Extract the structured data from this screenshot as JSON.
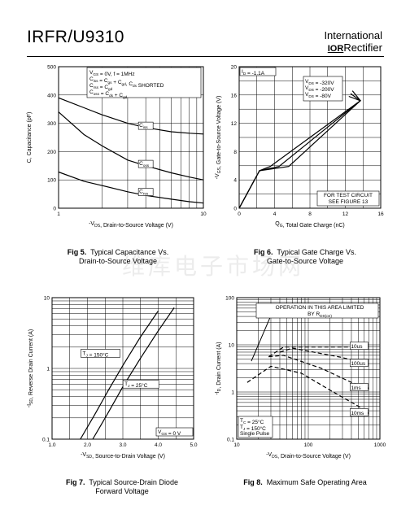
{
  "header": {
    "part_number": "IRFR/U9310",
    "brand_line1": "International",
    "brand_logo": "IOR",
    "brand_line2": "Rectifier"
  },
  "watermark": "维库电子市场网",
  "figures": {
    "fig5": {
      "number": "Fig 5.",
      "caption1": "Typical Capacitance Vs.",
      "caption2": "Drain-to-Source Voltage"
    },
    "fig6": {
      "number": "Fig 6.",
      "caption1": "Typical Gate Charge Vs.",
      "caption2": "Gate-to-Source Voltage"
    },
    "fig7": {
      "number": "Fig 7.",
      "caption1": "Typical Source-Drain Diode",
      "caption2": "Forward Voltage"
    },
    "fig8": {
      "number": "Fig 8.",
      "caption1": "Maximum Safe Operating Area",
      "caption2": ""
    }
  },
  "chart_data": [
    {
      "id": "fig5",
      "type": "line",
      "xlabel": "-V_DS, Drain-to-Source Voltage (V)",
      "ylabel": "C, Capacitance (pF)",
      "xscale": "log",
      "xlim": [
        1,
        10
      ],
      "ylim": [
        0,
        500
      ],
      "xticks": [
        "1",
        "10"
      ],
      "yticks": [
        "0",
        "100",
        "200",
        "300",
        "400",
        "500"
      ],
      "legend": [
        "V_GS = 0V, f = 1MHz",
        "C_iss = C_gs + C_gd, C_ds SHORTED",
        "C_rss = C_gd",
        "C_oss = C_ds + C_gd"
      ],
      "series": [
        {
          "name": "Ciss",
          "x": [
            1,
            1.5,
            2,
            3,
            4,
            6,
            8,
            10
          ],
          "y": [
            390,
            355,
            330,
            300,
            285,
            270,
            265,
            262
          ]
        },
        {
          "name": "Coss",
          "x": [
            1,
            1.5,
            2,
            3,
            4,
            6,
            8,
            10
          ],
          "y": [
            340,
            260,
            220,
            170,
            150,
            125,
            110,
            100
          ]
        },
        {
          "name": "Crss",
          "x": [
            1,
            1.5,
            2,
            3,
            4,
            6,
            8,
            10
          ],
          "y": [
            128,
            95,
            80,
            58,
            45,
            32,
            23,
            18
          ]
        }
      ]
    },
    {
      "id": "fig6",
      "type": "line",
      "xlabel": "Q_G, Total Gate Charge (nC)",
      "ylabel": "-V_GS, Gate-to-Source Voltage (V)",
      "xlim": [
        0,
        16
      ],
      "ylim": [
        0,
        20
      ],
      "xticks": [
        "0",
        "4",
        "8",
        "12",
        "16"
      ],
      "yticks": [
        "0",
        "4",
        "8",
        "12",
        "16",
        "20"
      ],
      "annotations": [
        "I_D = -1.1A",
        "FOR TEST CIRCUIT",
        "SEE FIGURE 13"
      ],
      "series": [
        {
          "name": "V_DS = -320V",
          "x": [
            0,
            2.3,
            3.5,
            13.7,
            12.8
          ],
          "y": [
            0,
            5.3,
            5.9,
            15.2,
            16.6
          ]
        },
        {
          "name": "V_DS = -200V",
          "x": [
            0,
            2.3,
            4.5,
            13.7,
            12.6
          ],
          "y": [
            0,
            5.3,
            5.9,
            15.2,
            16.2
          ]
        },
        {
          "name": "V_DS = -80V",
          "x": [
            0,
            2.3,
            5.6,
            13.7,
            12.4
          ],
          "y": [
            0,
            5.3,
            5.9,
            15.2,
            15.8
          ]
        }
      ]
    },
    {
      "id": "fig7",
      "type": "line",
      "xlabel": "-V_SD, Source-to-Drain Voltage (V)",
      "ylabel": "-I_SD, Reverse Drain Current (A)",
      "yscale": "log",
      "xlim": [
        1.0,
        5.0
      ],
      "ylim": [
        0.1,
        10
      ],
      "xticks": [
        "1.0",
        "2.0",
        "3.0",
        "4.0",
        "5.0"
      ],
      "yticks": [
        "0.1",
        "1",
        "10"
      ],
      "annotations": [
        "V_GS = 0 V"
      ],
      "series": [
        {
          "name": "T_J = 150°C",
          "x": [
            1.8,
            2.2,
            2.6,
            3.0,
            3.5,
            4.0
          ],
          "y": [
            0.1,
            0.22,
            0.5,
            1.1,
            2.8,
            6.5
          ]
        },
        {
          "name": "T_J = 25°C",
          "x": [
            2.15,
            2.55,
            3.0,
            3.5,
            4.0,
            4.45
          ],
          "y": [
            0.1,
            0.22,
            0.55,
            1.4,
            3.4,
            7.2
          ]
        }
      ]
    },
    {
      "id": "fig8",
      "type": "line",
      "xlabel": "-V_DS, Drain-to-Source Voltage (V)",
      "ylabel": "-I_D, Drain Current (A)",
      "xscale": "log",
      "yscale": "log",
      "xlim": [
        10,
        1000
      ],
      "ylim": [
        0.1,
        100
      ],
      "xticks": [
        "10",
        "100",
        "1000"
      ],
      "yticks": [
        "0.1",
        "1",
        "10",
        "100"
      ],
      "annotations": [
        "OPERATION IN THIS AREA LIMITED",
        "BY R_DS(on)",
        "T_C = 25°C",
        "T_J = 150°C",
        "Single Pulse"
      ],
      "series": [
        {
          "name": "10us",
          "x": [
            28,
            45,
            400,
            700
          ],
          "y": [
            5.6,
            9,
            9,
            9
          ]
        },
        {
          "name": "100us",
          "x": [
            40,
            60,
            280,
            700
          ],
          "y": [
            7,
            8.5,
            5.5,
            3.9
          ]
        },
        {
          "name": "1ms",
          "x": [
            28,
            45,
            150,
            400,
            700
          ],
          "y": [
            5.6,
            6,
            3.2,
            1.6,
            1.2
          ]
        },
        {
          "name": "10ms",
          "x": [
            14,
            30,
            80,
            200,
            500,
            700
          ],
          "y": [
            1.6,
            3.5,
            2.5,
            1.1,
            0.5,
            0.35
          ]
        }
      ]
    }
  ]
}
